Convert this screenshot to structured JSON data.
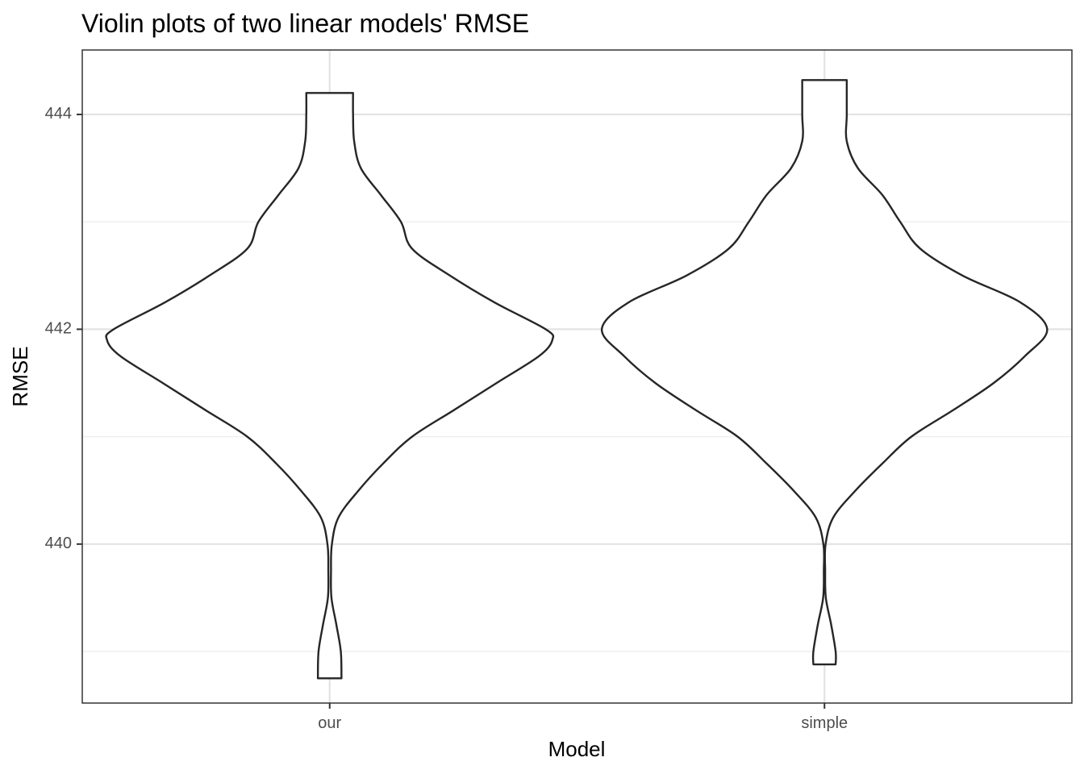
{
  "chart_data": {
    "type": "violin",
    "title": "Violin plots of two linear models' RMSE",
    "xlabel": "Model",
    "ylabel": "RMSE",
    "categories": [
      "our",
      "simple"
    ],
    "y_ticks": [
      "440",
      "442",
      "444"
    ],
    "ylim": [
      438.52,
      444.6
    ],
    "grid": true,
    "fill": "#ffffff",
    "line_color": "#262626",
    "violins": [
      {
        "category": "our",
        "min": 438.75,
        "max": 444.2,
        "profile": [
          [
            438.75,
            0.053
          ],
          [
            439.0,
            0.05
          ],
          [
            439.25,
            0.03
          ],
          [
            439.5,
            0.008
          ],
          [
            439.75,
            0.006
          ],
          [
            440.0,
            0.01
          ],
          [
            440.25,
            0.04
          ],
          [
            440.5,
            0.13
          ],
          [
            440.75,
            0.24
          ],
          [
            441.0,
            0.37
          ],
          [
            441.25,
            0.56
          ],
          [
            441.5,
            0.75
          ],
          [
            441.75,
            0.94
          ],
          [
            441.9,
            1.0
          ],
          [
            442.0,
            0.97
          ],
          [
            442.25,
            0.74
          ],
          [
            442.5,
            0.54
          ],
          [
            442.75,
            0.37
          ],
          [
            443.0,
            0.32
          ],
          [
            443.25,
            0.23
          ],
          [
            443.5,
            0.14
          ],
          [
            443.75,
            0.11
          ],
          [
            444.0,
            0.105
          ],
          [
            444.2,
            0.105
          ]
        ]
      },
      {
        "category": "simple",
        "min": 438.88,
        "max": 444.32,
        "profile": [
          [
            438.88,
            0.05
          ],
          [
            439.0,
            0.05
          ],
          [
            439.25,
            0.03
          ],
          [
            439.5,
            0.006
          ],
          [
            439.75,
            0.003
          ],
          [
            440.0,
            0.005
          ],
          [
            440.25,
            0.04
          ],
          [
            440.5,
            0.14
          ],
          [
            440.75,
            0.26
          ],
          [
            441.0,
            0.39
          ],
          [
            441.25,
            0.58
          ],
          [
            441.5,
            0.76
          ],
          [
            441.75,
            0.9
          ],
          [
            442.0,
            1.0
          ],
          [
            442.25,
            0.88
          ],
          [
            442.5,
            0.62
          ],
          [
            442.75,
            0.43
          ],
          [
            443.0,
            0.34
          ],
          [
            443.25,
            0.26
          ],
          [
            443.5,
            0.15
          ],
          [
            443.75,
            0.1
          ],
          [
            444.0,
            0.1
          ],
          [
            444.32,
            0.1
          ]
        ]
      }
    ]
  }
}
